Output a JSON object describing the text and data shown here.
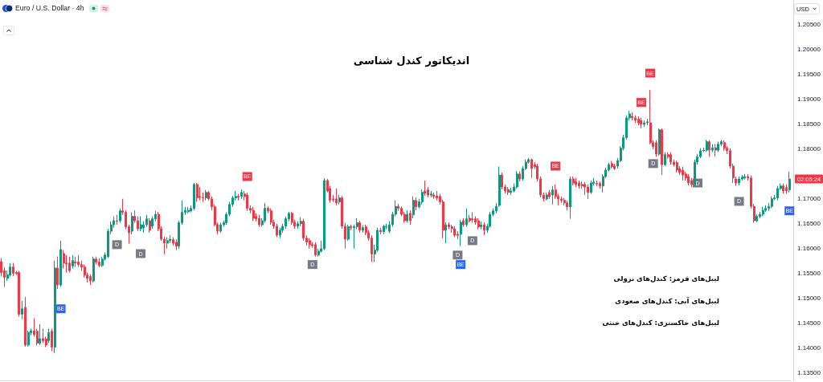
{
  "chart_data": {
    "type": "candlestick",
    "title": "اندیکاتور کندل شناسی",
    "subtitle": "Euro / U.S. Dollar · 4h",
    "ylabel": "USD",
    "categories": [
      null,
      null,
      null,
      null,
      null,
      null,
      null,
      null,
      null,
      null,
      null,
      null,
      null,
      null,
      null,
      null,
      null,
      null,
      null,
      null,
      null,
      null,
      null,
      null,
      null,
      null,
      null,
      null,
      null,
      null,
      null,
      null,
      null,
      null,
      null,
      null,
      null,
      null,
      null,
      null,
      null,
      null,
      null,
      null,
      null,
      null,
      null,
      null,
      null,
      null,
      null,
      null,
      null,
      null,
      null,
      null,
      null,
      null,
      null,
      null,
      null,
      null,
      null,
      null,
      null,
      null,
      null,
      null,
      null,
      null,
      null,
      null,
      null,
      null,
      null,
      null,
      null,
      null,
      null,
      null,
      null,
      null,
      null,
      null,
      null,
      null,
      null,
      null,
      null,
      null,
      null,
      null,
      null,
      null,
      null,
      null,
      null,
      null,
      null,
      null,
      null,
      null,
      null,
      null,
      null,
      null,
      null,
      null,
      null,
      null,
      null,
      null,
      null,
      null,
      null,
      null,
      null,
      null,
      null,
      null,
      null,
      null,
      null,
      null,
      null,
      null,
      null,
      null,
      null,
      null,
      null,
      null,
      null,
      null,
      null,
      null,
      null,
      null,
      null,
      null,
      null,
      null,
      null,
      null,
      null,
      null,
      null,
      null,
      null,
      null,
      null,
      null,
      null,
      null,
      null,
      null,
      null,
      null,
      null,
      null,
      null,
      null,
      null,
      null,
      null,
      null,
      null,
      null,
      null,
      null,
      null,
      null,
      null,
      null,
      null,
      null,
      null,
      null,
      null,
      null,
      null,
      null,
      null,
      null,
      null,
      null,
      null,
      null,
      null,
      null,
      null,
      null,
      null,
      null,
      null,
      null,
      null,
      null,
      null,
      null,
      null,
      null,
      null,
      null,
      null,
      null,
      null,
      null,
      null,
      null,
      null,
      null,
      null,
      null,
      null,
      null,
      null,
      null,
      null,
      null,
      null,
      null,
      null,
      null,
      null,
      null,
      null,
      null,
      null,
      null,
      null,
      null,
      null,
      null,
      null,
      null,
      null,
      null,
      null,
      null,
      null,
      null,
      null,
      null,
      null,
      null,
      null,
      null,
      null,
      null,
      null,
      null,
      null,
      null,
      null,
      null,
      null,
      null,
      null,
      null,
      null,
      null,
      null,
      null,
      null,
      null,
      null
    ],
    "ohlc": [
      [
        1.1574,
        1.1581,
        1.1544,
        1.1552
      ],
      [
        1.1556,
        1.1563,
        1.1523,
        1.1542
      ],
      [
        1.154,
        1.1556,
        1.1535,
        1.1547
      ],
      [
        1.1547,
        1.1571,
        1.1544,
        1.1563
      ],
      [
        1.1563,
        1.1571,
        1.1545,
        1.155
      ],
      [
        1.1552,
        1.1555,
        1.1547,
        1.155
      ],
      [
        1.1552,
        1.1555,
        1.1463,
        1.1468
      ],
      [
        1.1468,
        1.1495,
        1.1458,
        1.1479
      ],
      [
        1.1482,
        1.1503,
        1.1403,
        1.1406
      ],
      [
        1.1406,
        1.1435,
        1.1403,
        1.1431
      ],
      [
        1.1431,
        1.1439,
        1.1426,
        1.1435
      ],
      [
        1.1435,
        1.146,
        1.1423,
        1.1427
      ],
      [
        1.1434,
        1.1439,
        1.1405,
        1.141
      ],
      [
        1.141,
        1.1448,
        1.1406,
        1.1419
      ],
      [
        1.1419,
        1.1439,
        1.141,
        1.1415
      ],
      [
        1.1418,
        1.1423,
        1.1402,
        1.1406
      ],
      [
        1.1415,
        1.1439,
        1.141,
        1.1431
      ],
      [
        1.1434,
        1.1439,
        1.1394,
        1.1402
      ],
      [
        1.1402,
        1.1576,
        1.139,
        1.1561
      ],
      [
        1.1561,
        1.1584,
        1.1519,
        1.1527
      ],
      [
        1.1527,
        1.1616,
        1.1523,
        1.1598
      ],
      [
        1.159,
        1.1597,
        1.156,
        1.1571
      ],
      [
        1.1571,
        1.1587,
        1.1552,
        1.1569
      ],
      [
        1.1571,
        1.1584,
        1.1552,
        1.1556
      ],
      [
        1.1565,
        1.1587,
        1.156,
        1.1576
      ],
      [
        1.1573,
        1.1584,
        1.1563,
        1.1571
      ],
      [
        1.1573,
        1.1587,
        1.1563,
        1.1568
      ],
      [
        1.1568,
        1.1576,
        1.1555,
        1.1563
      ],
      [
        1.1563,
        1.1568,
        1.1542,
        1.1547
      ],
      [
        1.1547,
        1.1552,
        1.1532,
        1.154
      ],
      [
        1.1544,
        1.1548,
        1.1527,
        1.1535
      ],
      [
        1.1535,
        1.1584,
        1.1532,
        1.1579
      ],
      [
        1.1579,
        1.1584,
        1.1568,
        1.1573
      ],
      [
        1.1573,
        1.1581,
        1.1563,
        1.1566
      ],
      [
        1.1566,
        1.1584,
        1.1563,
        1.1579
      ],
      [
        1.1579,
        1.1592,
        1.1576,
        1.1587
      ],
      [
        1.1584,
        1.164,
        1.1581,
        1.1635
      ],
      [
        1.1635,
        1.1655,
        1.1629,
        1.1648
      ],
      [
        1.1648,
        1.1665,
        1.1642,
        1.1656
      ],
      [
        1.1656,
        1.1668,
        1.1648,
        1.1655
      ],
      [
        1.1656,
        1.1681,
        1.1652,
        1.1676
      ],
      [
        1.1676,
        1.17,
        1.1668,
        1.1673
      ],
      [
        1.1673,
        1.1677,
        1.1639,
        1.1644
      ],
      [
        1.1644,
        1.1648,
        1.161,
        1.1632
      ],
      [
        1.1635,
        1.1673,
        1.1629,
        1.1665
      ],
      [
        1.1665,
        1.1677,
        1.1652,
        1.1656
      ],
      [
        1.1656,
        1.1665,
        1.1635,
        1.164
      ],
      [
        1.164,
        1.1665,
        1.1635,
        1.1648
      ],
      [
        1.1642,
        1.1655,
        1.1632,
        1.1648
      ],
      [
        1.1648,
        1.1668,
        1.1644,
        1.166
      ],
      [
        1.1656,
        1.1661,
        1.1632,
        1.1637
      ],
      [
        1.1645,
        1.1665,
        1.164,
        1.166
      ],
      [
        1.166,
        1.1676,
        1.1655,
        1.1669
      ],
      [
        1.1669,
        1.1674,
        1.1635,
        1.164
      ],
      [
        1.164,
        1.1645,
        1.1616,
        1.1619
      ],
      [
        1.1619,
        1.1624,
        1.1589,
        1.1611
      ],
      [
        1.1611,
        1.1623,
        1.16,
        1.1616
      ],
      [
        1.1616,
        1.1627,
        1.1611,
        1.1619
      ],
      [
        1.1618,
        1.1623,
        1.1606,
        1.1611
      ],
      [
        1.1613,
        1.1619,
        1.1597,
        1.1605
      ],
      [
        1.1605,
        1.1656,
        1.16,
        1.1652
      ],
      [
        1.1652,
        1.1697,
        1.1648,
        1.1673
      ],
      [
        1.1673,
        1.1684,
        1.1668,
        1.1677
      ],
      [
        1.1674,
        1.1684,
        1.1671,
        1.1677
      ],
      [
        1.1676,
        1.1687,
        1.1673,
        1.1681
      ],
      [
        1.1681,
        1.1732,
        1.1677,
        1.1729
      ],
      [
        1.1729,
        1.1732,
        1.1694,
        1.1702
      ],
      [
        1.1705,
        1.1724,
        1.1697,
        1.1703
      ],
      [
        1.1703,
        1.1713,
        1.1694,
        1.1702
      ],
      [
        1.1702,
        1.1718,
        1.1697,
        1.1713
      ],
      [
        1.1713,
        1.1716,
        1.1697,
        1.17
      ],
      [
        1.17,
        1.1705,
        1.1677,
        1.1684
      ],
      [
        1.1684,
        1.1689,
        1.1645,
        1.1648
      ],
      [
        1.1648,
        1.1652,
        1.1629,
        1.1635
      ],
      [
        1.1635,
        1.1652,
        1.1632,
        1.1648
      ],
      [
        1.1648,
        1.1656,
        1.1644,
        1.1652
      ],
      [
        1.1652,
        1.1673,
        1.1648,
        1.1669
      ],
      [
        1.1669,
        1.1694,
        1.1665,
        1.1689
      ],
      [
        1.1689,
        1.1706,
        1.1684,
        1.1702
      ],
      [
        1.1702,
        1.1716,
        1.1697,
        1.1705
      ],
      [
        1.1705,
        1.171,
        1.1697,
        1.1703
      ],
      [
        1.1705,
        1.1719,
        1.17,
        1.1713
      ],
      [
        1.171,
        1.1716,
        1.1697,
        1.1705
      ],
      [
        1.1708,
        1.1713,
        1.1676,
        1.1681
      ],
      [
        1.1681,
        1.1687,
        1.1671,
        1.1677
      ],
      [
        1.1677,
        1.1684,
        1.1656,
        1.1661
      ],
      [
        1.1665,
        1.1671,
        1.1655,
        1.166
      ],
      [
        1.1661,
        1.1668,
        1.1644,
        1.1648
      ],
      [
        1.1648,
        1.1661,
        1.1644,
        1.1656
      ],
      [
        1.1656,
        1.1692,
        1.1652,
        1.1681
      ],
      [
        1.1681,
        1.1685,
        1.1671,
        1.1676
      ],
      [
        1.1676,
        1.1681,
        1.1648,
        1.1653
      ],
      [
        1.1653,
        1.1658,
        1.164,
        1.1645
      ],
      [
        1.1645,
        1.165,
        1.1623,
        1.1627
      ],
      [
        1.1627,
        1.1642,
        1.1621,
        1.1637
      ],
      [
        1.1637,
        1.165,
        1.1632,
        1.1645
      ],
      [
        1.1645,
        1.1665,
        1.164,
        1.166
      ],
      [
        1.166,
        1.1674,
        1.1655,
        1.1671
      ],
      [
        1.1671,
        1.1674,
        1.1648,
        1.1653
      ],
      [
        1.1653,
        1.1658,
        1.164,
        1.1645
      ],
      [
        1.1645,
        1.1655,
        1.164,
        1.165
      ],
      [
        1.165,
        1.1663,
        1.1645,
        1.1655
      ],
      [
        1.1655,
        1.166,
        1.1616,
        1.1621
      ],
      [
        1.1621,
        1.1627,
        1.1606,
        1.1613
      ],
      [
        1.1616,
        1.1621,
        1.16,
        1.1608
      ],
      [
        1.1608,
        1.1613,
        1.1602,
        1.1606
      ],
      [
        1.1608,
        1.1613,
        1.1584,
        1.1587
      ],
      [
        1.1587,
        1.16,
        1.1584,
        1.1595
      ],
      [
        1.1595,
        1.1616,
        1.1592,
        1.16
      ],
      [
        1.16,
        1.1742,
        1.1597,
        1.1737
      ],
      [
        1.1737,
        1.174,
        1.1713,
        1.1716
      ],
      [
        1.1721,
        1.1726,
        1.1692,
        1.1697
      ],
      [
        1.17,
        1.1708,
        1.1694,
        1.1698
      ],
      [
        1.17,
        1.1721,
        1.1687,
        1.1692
      ],
      [
        1.1694,
        1.1708,
        1.1689,
        1.1702
      ],
      [
        1.1702,
        1.1706,
        1.164,
        1.1645
      ],
      [
        1.1645,
        1.1652,
        1.16,
        1.1619
      ],
      [
        1.1619,
        1.1648,
        1.1616,
        1.1644
      ],
      [
        1.1644,
        1.1648,
        1.1637,
        1.1642
      ],
      [
        1.1642,
        1.1648,
        1.16,
        1.1644
      ],
      [
        1.1644,
        1.1661,
        1.1639,
        1.1652
      ],
      [
        1.1652,
        1.1656,
        1.1632,
        1.1637
      ],
      [
        1.1637,
        1.1647,
        1.1632,
        1.1642
      ],
      [
        1.1644,
        1.1648,
        1.1627,
        1.1632
      ],
      [
        1.1632,
        1.1637,
        1.1616,
        1.1621
      ],
      [
        1.1621,
        1.1627,
        1.1573,
        1.1589
      ],
      [
        1.1589,
        1.1608,
        1.1573,
        1.1597
      ],
      [
        1.1597,
        1.1642,
        1.1594,
        1.1637
      ],
      [
        1.1637,
        1.1642,
        1.1629,
        1.1634
      ],
      [
        1.1634,
        1.1648,
        1.1629,
        1.1645
      ],
      [
        1.1644,
        1.165,
        1.1639,
        1.1645
      ],
      [
        1.1635,
        1.1655,
        1.1631,
        1.1648
      ],
      [
        1.1648,
        1.1674,
        1.1644,
        1.1669
      ],
      [
        1.1669,
        1.1697,
        1.1665,
        1.1685
      ],
      [
        1.1685,
        1.169,
        1.1676,
        1.1681
      ],
      [
        1.1681,
        1.1685,
        1.1665,
        1.1669
      ],
      [
        1.1669,
        1.1674,
        1.1652,
        1.1656
      ],
      [
        1.1656,
        1.1677,
        1.1652,
        1.1669
      ],
      [
        1.1671,
        1.1677,
        1.1648,
        1.1656
      ],
      [
        1.1668,
        1.1705,
        1.1661,
        1.1697
      ],
      [
        1.1697,
        1.1703,
        1.1677,
        1.1684
      ],
      [
        1.1684,
        1.17,
        1.1681,
        1.1694
      ],
      [
        1.1694,
        1.1719,
        1.1689,
        1.1713
      ],
      [
        1.1716,
        1.1737,
        1.1706,
        1.1711
      ],
      [
        1.1718,
        1.1724,
        1.1703,
        1.1708
      ],
      [
        1.1708,
        1.1716,
        1.1703,
        1.171
      ],
      [
        1.1708,
        1.1713,
        1.17,
        1.1705
      ],
      [
        1.1706,
        1.1716,
        1.1697,
        1.1702
      ],
      [
        1.1705,
        1.171,
        1.1689,
        1.1694
      ],
      [
        1.1694,
        1.1698,
        1.1621,
        1.1637
      ],
      [
        1.1637,
        1.1653,
        1.1611,
        1.1648
      ],
      [
        1.1648,
        1.1653,
        1.1639,
        1.1644
      ],
      [
        1.1644,
        1.1648,
        1.1632,
        1.164
      ],
      [
        1.164,
        1.1645,
        1.1623,
        1.1627
      ],
      [
        1.1629,
        1.1635,
        1.1619,
        1.1627
      ],
      [
        1.1629,
        1.1658,
        1.1605,
        1.1653
      ],
      [
        1.1656,
        1.1661,
        1.1644,
        1.1648
      ],
      [
        1.1648,
        1.1681,
        1.1644,
        1.166
      ],
      [
        1.1661,
        1.1668,
        1.1652,
        1.1656
      ],
      [
        1.166,
        1.1673,
        1.1652,
        1.1658
      ],
      [
        1.166,
        1.1665,
        1.1648,
        1.1653
      ],
      [
        1.1656,
        1.1661,
        1.1639,
        1.1644
      ],
      [
        1.1644,
        1.1655,
        1.1639,
        1.1648
      ],
      [
        1.1648,
        1.1653,
        1.1627,
        1.1637
      ],
      [
        1.1637,
        1.165,
        1.1632,
        1.1645
      ],
      [
        1.1645,
        1.1674,
        1.1642,
        1.1669
      ],
      [
        1.1669,
        1.1681,
        1.1665,
        1.1676
      ],
      [
        1.1676,
        1.1692,
        1.1671,
        1.1685
      ],
      [
        1.1687,
        1.1765,
        1.1684,
        1.1748
      ],
      [
        1.1748,
        1.1753,
        1.1719,
        1.1724
      ],
      [
        1.1724,
        1.1729,
        1.1711,
        1.1716
      ],
      [
        1.1719,
        1.1724,
        1.1708,
        1.1713
      ],
      [
        1.1713,
        1.1723,
        1.1708,
        1.1716
      ],
      [
        1.1716,
        1.1731,
        1.1713,
        1.1724
      ],
      [
        1.1724,
        1.1756,
        1.1721,
        1.175
      ],
      [
        1.175,
        1.1755,
        1.1735,
        1.174
      ],
      [
        1.174,
        1.1766,
        1.1737,
        1.1761
      ],
      [
        1.1761,
        1.1779,
        1.1758,
        1.1774
      ],
      [
        1.1774,
        1.1782,
        1.1771,
        1.1779
      ],
      [
        1.1779,
        1.1781,
        1.1742,
        1.1761
      ],
      [
        1.1769,
        1.1774,
        1.176,
        1.1765
      ],
      [
        1.1766,
        1.1771,
        1.1735,
        1.174
      ],
      [
        1.174,
        1.1745,
        1.1703,
        1.1708
      ],
      [
        1.1708,
        1.1713,
        1.1695,
        1.17
      ],
      [
        1.17,
        1.1713,
        1.1697,
        1.1708
      ],
      [
        1.1713,
        1.1718,
        1.17,
        1.1705
      ],
      [
        1.1708,
        1.1726,
        1.1689,
        1.1718
      ],
      [
        1.1718,
        1.1729,
        1.17,
        1.1705
      ],
      [
        1.1705,
        1.171,
        1.1687,
        1.17
      ],
      [
        1.17,
        1.1705,
        1.1692,
        1.1697
      ],
      [
        1.1697,
        1.1702,
        1.1687,
        1.1692
      ],
      [
        1.1692,
        1.1697,
        1.1677,
        1.1684
      ],
      [
        1.1684,
        1.1745,
        1.166,
        1.174
      ],
      [
        1.174,
        1.1745,
        1.1727,
        1.1732
      ],
      [
        1.1735,
        1.1742,
        1.1724,
        1.1729
      ],
      [
        1.1732,
        1.1737,
        1.1721,
        1.1726
      ],
      [
        1.1729,
        1.1735,
        1.1721,
        1.1726
      ],
      [
        1.1729,
        1.1734,
        1.1708,
        1.1724
      ],
      [
        1.1724,
        1.1729,
        1.17,
        1.1713
      ],
      [
        1.1713,
        1.1737,
        1.171,
        1.1732
      ],
      [
        1.1731,
        1.1742,
        1.1727,
        1.1734
      ],
      [
        1.1731,
        1.1737,
        1.1726,
        1.173
      ],
      [
        1.1731,
        1.1735,
        1.1721,
        1.1726
      ],
      [
        1.1726,
        1.175,
        1.1713,
        1.1745
      ],
      [
        1.1745,
        1.1763,
        1.1742,
        1.1758
      ],
      [
        1.1758,
        1.1773,
        1.1755,
        1.1769
      ],
      [
        1.1771,
        1.1776,
        1.1761,
        1.1765
      ],
      [
        1.1766,
        1.1771,
        1.1758,
        1.1761
      ],
      [
        1.1766,
        1.1782,
        1.1761,
        1.1777
      ],
      [
        1.1777,
        1.1806,
        1.1774,
        1.1802
      ],
      [
        1.1802,
        1.1829,
        1.1798,
        1.1823
      ],
      [
        1.1823,
        1.1868,
        1.1819,
        1.1863
      ],
      [
        1.1863,
        1.1877,
        1.1858,
        1.1871
      ],
      [
        1.1866,
        1.1874,
        1.1858,
        1.1863
      ],
      [
        1.1863,
        1.1868,
        1.1853,
        1.1858
      ],
      [
        1.1861,
        1.1866,
        1.1848,
        1.1853
      ],
      [
        1.1858,
        1.1863,
        1.1842,
        1.185
      ],
      [
        1.185,
        1.1858,
        1.1845,
        1.1853
      ],
      [
        1.1853,
        1.1861,
        1.1848,
        1.1855
      ],
      [
        1.1853,
        1.1919,
        1.181,
        1.1813
      ],
      [
        1.1813,
        1.1818,
        1.18,
        1.1805
      ],
      [
        1.1813,
        1.1818,
        1.1785,
        1.179
      ],
      [
        1.179,
        1.1842,
        1.1787,
        1.1839
      ],
      [
        1.1839,
        1.1842,
        1.1748,
        1.1769
      ],
      [
        1.1769,
        1.1794,
        1.1766,
        1.1789
      ],
      [
        1.1789,
        1.1794,
        1.1781,
        1.1785
      ],
      [
        1.1789,
        1.1794,
        1.1769,
        1.1774
      ],
      [
        1.1774,
        1.1779,
        1.1765,
        1.1769
      ],
      [
        1.1773,
        1.1777,
        1.1753,
        1.1758
      ],
      [
        1.1761,
        1.1766,
        1.1748,
        1.1753
      ],
      [
        1.1758,
        1.1765,
        1.1737,
        1.1748
      ],
      [
        1.175,
        1.1755,
        1.1737,
        1.1742
      ],
      [
        1.1745,
        1.175,
        1.1727,
        1.1732
      ],
      [
        1.1737,
        1.1742,
        1.1724,
        1.1729
      ],
      [
        1.1729,
        1.1779,
        1.1724,
        1.1774
      ],
      [
        1.1774,
        1.179,
        1.1769,
        1.1785
      ],
      [
        1.1785,
        1.1802,
        1.1782,
        1.1797
      ],
      [
        1.1797,
        1.1803,
        1.1794,
        1.1798
      ],
      [
        1.1798,
        1.1819,
        1.1795,
        1.1815
      ],
      [
        1.1815,
        1.1818,
        1.1785,
        1.1798
      ],
      [
        1.1798,
        1.181,
        1.1794,
        1.1803
      ],
      [
        1.1803,
        1.181,
        1.1785,
        1.1798
      ],
      [
        1.1798,
        1.1815,
        1.1794,
        1.181
      ],
      [
        1.181,
        1.1819,
        1.1806,
        1.1815
      ],
      [
        1.1813,
        1.1818,
        1.1797,
        1.1802
      ],
      [
        1.1802,
        1.1806,
        1.179,
        1.1797
      ],
      [
        1.1797,
        1.1802,
        1.1761,
        1.1766
      ],
      [
        1.1766,
        1.1771,
        1.1732,
        1.1742
      ],
      [
        1.174,
        1.1745,
        1.1726,
        1.1732
      ],
      [
        1.1732,
        1.1745,
        1.1727,
        1.174
      ],
      [
        1.174,
        1.1748,
        1.1737,
        1.1744
      ],
      [
        1.1742,
        1.175,
        1.1739,
        1.1745
      ],
      [
        1.1745,
        1.175,
        1.1737,
        1.1742
      ],
      [
        1.1742,
        1.1747,
        1.1681,
        1.1685
      ],
      [
        1.1685,
        1.169,
        1.1652,
        1.1656
      ],
      [
        1.1656,
        1.1669,
        1.1653,
        1.1665
      ],
      [
        1.1665,
        1.1674,
        1.1661,
        1.1669
      ],
      [
        1.1669,
        1.1684,
        1.1665,
        1.1677
      ],
      [
        1.1677,
        1.1687,
        1.1674,
        1.1681
      ],
      [
        1.1681,
        1.1692,
        1.1676,
        1.1685
      ],
      [
        1.1685,
        1.1705,
        1.1681,
        1.17
      ],
      [
        1.17,
        1.1708,
        1.1697,
        1.1702
      ],
      [
        1.1702,
        1.1726,
        1.1697,
        1.1721
      ],
      [
        1.1721,
        1.1731,
        1.1718,
        1.1726
      ],
      [
        1.1726,
        1.1731,
        1.1711,
        1.1716
      ],
      [
        1.1723,
        1.1729,
        1.171,
        1.1716
      ],
      [
        1.1718,
        1.1755,
        1.1713,
        1.174
      ]
    ],
    "series": [
      {
        "type": "scatter",
        "name": "BE",
        "color": "#f23645",
        "values": [
          null,
          null,
          null,
          null,
          null,
          null,
          null,
          null,
          null,
          null,
          null,
          null,
          null,
          null,
          null,
          null,
          null,
          null,
          null,
          null,
          null,
          null,
          null,
          null,
          null,
          null,
          null,
          null,
          null,
          null,
          null,
          null,
          null,
          null,
          null,
          null,
          null,
          null,
          null,
          null,
          null,
          null,
          null,
          null,
          null,
          null,
          null,
          null,
          null,
          null,
          null,
          null,
          null,
          null,
          null,
          null,
          null,
          null,
          null,
          null,
          null,
          null,
          null,
          null,
          null,
          null,
          null,
          null,
          null,
          null,
          null,
          null,
          null,
          null,
          null,
          null,
          null,
          null,
          null,
          null,
          null,
          null,
          null,
          1.1745,
          null,
          null,
          null,
          null,
          null,
          null,
          null,
          null,
          null,
          null,
          null,
          null,
          null,
          null,
          null,
          null,
          null,
          null,
          null,
          null,
          null,
          null,
          null,
          null,
          null,
          null,
          null,
          null,
          null,
          null,
          null,
          null,
          null,
          null,
          null,
          null,
          null,
          null,
          null,
          null,
          null,
          null,
          null,
          null,
          null,
          null,
          null,
          null,
          null,
          null,
          null,
          null,
          null,
          null,
          null,
          null,
          null,
          null,
          null,
          null,
          null,
          null,
          null,
          null,
          null,
          null,
          null,
          null,
          null,
          null,
          null,
          null,
          null,
          null,
          null,
          null,
          null,
          null,
          null,
          null,
          null,
          null,
          null,
          null,
          null,
          null,
          null,
          null,
          null,
          null,
          null,
          null,
          null,
          null,
          null,
          null,
          null,
          null,
          null,
          null,
          null,
          null,
          null,
          1.1766,
          null,
          null,
          null,
          null,
          null,
          null,
          null,
          null,
          null,
          null,
          null,
          null,
          null,
          null,
          null,
          null,
          null,
          null,
          null,
          null,
          null,
          null,
          null,
          null,
          null,
          null,
          null,
          null,
          1.1894,
          null,
          null,
          1.1953,
          null,
          null,
          null,
          null,
          null,
          null,
          null,
          null,
          null,
          null,
          null,
          null,
          null,
          null,
          null,
          null,
          null,
          null,
          null,
          null,
          null,
          null,
          null,
          null,
          null,
          null,
          null,
          null,
          null,
          null,
          null,
          null,
          null,
          null,
          null,
          null,
          null,
          null,
          null,
          null,
          null,
          null,
          null,
          null,
          null,
          null,
          null
        ]
      },
      {
        "type": "scatter",
        "name": "BE",
        "color": "#2962ff",
        "values": [
          null,
          null,
          null,
          null,
          null,
          null,
          null,
          null,
          null,
          null,
          null,
          null,
          null,
          null,
          null,
          null,
          null,
          null,
          null,
          null,
          1.1479,
          null,
          null,
          null,
          null,
          null,
          null,
          null,
          null,
          null,
          null,
          null,
          null,
          null,
          null,
          null,
          null,
          null,
          null,
          null,
          null,
          null,
          null,
          null,
          null,
          null,
          null,
          null,
          null,
          null,
          null,
          null,
          null,
          null,
          null,
          null,
          null,
          null,
          null,
          null,
          null,
          null,
          null,
          null,
          null,
          null,
          null,
          null,
          null,
          null,
          null,
          null,
          null,
          null,
          null,
          null,
          null,
          null,
          null,
          null,
          null,
          null,
          null,
          null,
          null,
          null,
          null,
          null,
          null,
          null,
          null,
          null,
          null,
          null,
          null,
          null,
          null,
          null,
          null,
          null,
          null,
          null,
          null,
          null,
          null,
          null,
          null,
          null,
          null,
          null,
          null,
          null,
          null,
          null,
          null,
          null,
          null,
          null,
          null,
          null,
          null,
          null,
          null,
          null,
          null,
          null,
          null,
          null,
          null,
          null,
          null,
          null,
          null,
          null,
          null,
          null,
          null,
          null,
          null,
          null,
          null,
          null,
          null,
          null,
          null,
          null,
          null,
          null,
          null,
          null,
          null,
          null,
          null,
          null,
          null,
          1.1568,
          null,
          null,
          null,
          null,
          null,
          null,
          null,
          null,
          null,
          null,
          null,
          null,
          null,
          null,
          null,
          null,
          null,
          null,
          null,
          null,
          null,
          null,
          null,
          null,
          null,
          null,
          null,
          null,
          null,
          null,
          null,
          null,
          null,
          null,
          null,
          null,
          null,
          null,
          null,
          null,
          null,
          null,
          null,
          null,
          null,
          null,
          null,
          null,
          null,
          null,
          null,
          null,
          null,
          null,
          null,
          null,
          null,
          null,
          null,
          null,
          null,
          null,
          null,
          null,
          null,
          null,
          null,
          null,
          null,
          null,
          null,
          null,
          null,
          null,
          null,
          null,
          null,
          null,
          null,
          null,
          null,
          null,
          null,
          null,
          null,
          null,
          null,
          null,
          null,
          null,
          null,
          null,
          null,
          null,
          null,
          null,
          null,
          null,
          null,
          null,
          null,
          null,
          null,
          null,
          null,
          null,
          null,
          null,
          null,
          null,
          1.1676
        ]
      },
      {
        "type": "scatter",
        "name": "D",
        "color": "#787b86",
        "values": [
          null,
          null,
          null,
          null,
          null,
          null,
          null,
          null,
          null,
          null,
          null,
          null,
          null,
          null,
          null,
          null,
          null,
          null,
          null,
          null,
          null,
          null,
          null,
          null,
          null,
          null,
          null,
          null,
          null,
          null,
          null,
          null,
          null,
          null,
          null,
          null,
          null,
          null,
          null,
          1.1608,
          null,
          null,
          null,
          null,
          null,
          null,
          null,
          1.159,
          null,
          null,
          null,
          null,
          null,
          null,
          null,
          null,
          null,
          null,
          null,
          null,
          null,
          null,
          null,
          null,
          null,
          null,
          null,
          null,
          null,
          null,
          null,
          null,
          null,
          null,
          null,
          null,
          null,
          null,
          null,
          null,
          null,
          null,
          null,
          null,
          null,
          null,
          null,
          null,
          null,
          null,
          null,
          null,
          null,
          null,
          null,
          null,
          null,
          null,
          null,
          null,
          null,
          null,
          null,
          null,
          null,
          1.1568,
          null,
          null,
          null,
          null,
          null,
          null,
          null,
          null,
          null,
          null,
          null,
          null,
          null,
          null,
          null,
          null,
          null,
          null,
          null,
          null,
          null,
          null,
          null,
          null,
          null,
          null,
          null,
          null,
          null,
          null,
          null,
          null,
          null,
          null,
          null,
          null,
          null,
          null,
          null,
          null,
          null,
          null,
          null,
          null,
          null,
          null,
          null,
          null,
          1.1587,
          null,
          null,
          null,
          null,
          1.1616,
          null,
          null,
          null,
          null,
          null,
          null,
          null,
          null,
          null,
          null,
          null,
          null,
          null,
          null,
          null,
          null,
          null,
          null,
          null,
          null,
          null,
          null,
          null,
          null,
          null,
          null,
          null,
          null,
          null,
          null,
          null,
          null,
          null,
          null,
          null,
          null,
          null,
          null,
          null,
          null,
          null,
          null,
          null,
          null,
          null,
          null,
          null,
          null,
          null,
          null,
          null,
          null,
          null,
          null,
          null,
          null,
          null,
          null,
          null,
          null,
          1.1771,
          null,
          null,
          null,
          null,
          null,
          null,
          null,
          null,
          null,
          null,
          null,
          null,
          null,
          null,
          1.1732,
          null,
          null,
          null,
          null,
          null,
          null,
          null,
          null,
          null,
          null,
          null,
          null,
          null,
          1.1695,
          null,
          null,
          null,
          null,
          null,
          null,
          null,
          null,
          null,
          null,
          null,
          null,
          null,
          null,
          null,
          null,
          null
        ]
      }
    ],
    "marker": "square",
    "ylim": [
      1.1335,
      1.21
    ],
    "yticks": [
      {
        "value": 1.135,
        "label": "1.13500"
      },
      {
        "value": 1.14,
        "label": "1.14000"
      },
      {
        "value": 1.145,
        "label": "1.14500"
      },
      {
        "value": 1.15,
        "label": "1.15000"
      },
      {
        "value": 1.155,
        "label": "1.15500"
      },
      {
        "value": 1.16,
        "label": "1.16000"
      },
      {
        "value": 1.165,
        "label": "1.16500"
      },
      {
        "value": 1.17,
        "label": "1.17000"
      },
      {
        "value": 1.18,
        "label": "1.18000"
      },
      {
        "value": 1.185,
        "label": "1.18500"
      },
      {
        "value": 1.19,
        "label": "1.19000"
      },
      {
        "value": 1.195,
        "label": "1.19500"
      },
      {
        "value": 1.2,
        "label": "1.20000"
      },
      {
        "value": 1.205,
        "label": "1.20500"
      }
    ],
    "tick_labels": "y",
    "annotations": [
      "لیبل‌های قرمز: کندل‌های نزولی",
      "لیبل‌های آبی: کندل‌های صعودی",
      "لیبل‌های خاکستری: کندل‌های خنثی",
      "02:05:24"
    ]
  }
}
